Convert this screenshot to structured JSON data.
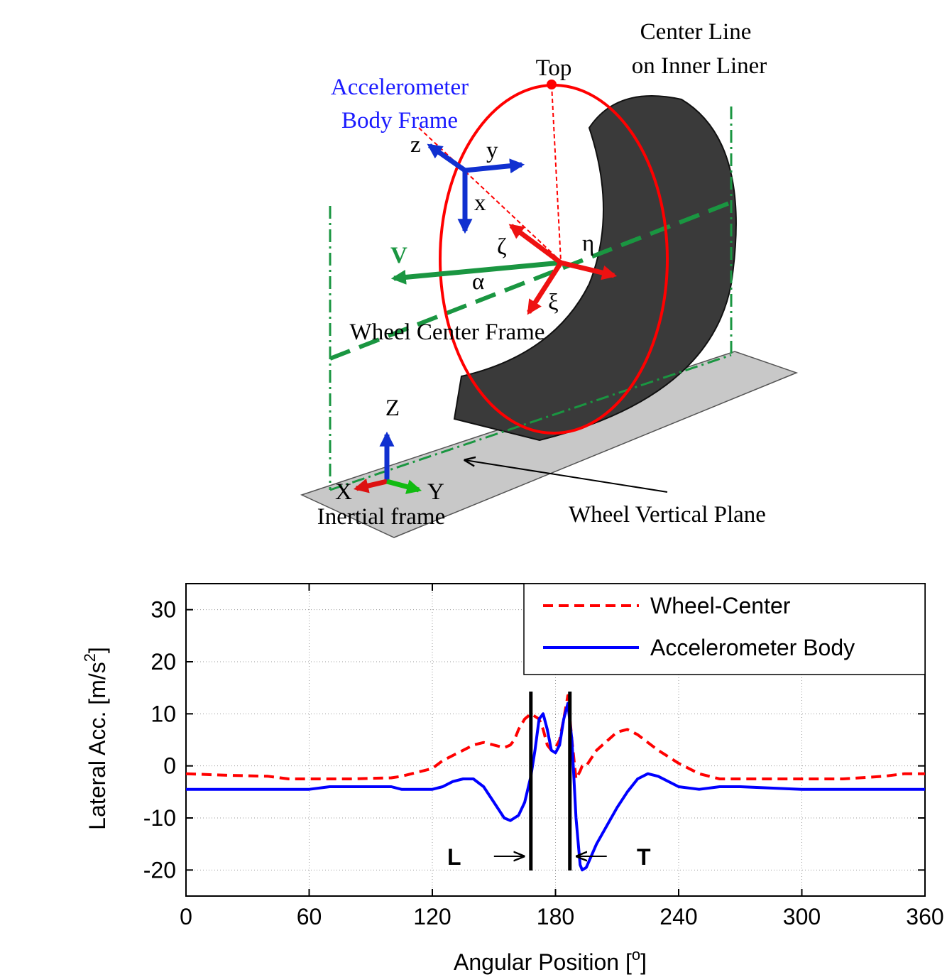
{
  "diagram": {
    "center_line": [
      "Center Line",
      "on Inner Liner"
    ],
    "top": "Top",
    "accelerometer": [
      "Accelerometer",
      "Body Frame"
    ],
    "acc_axes": [
      "z",
      "y",
      "x"
    ],
    "wheel_axes": [
      "ζ",
      "η",
      "ξ"
    ],
    "velocity": "V",
    "slip": "α",
    "wheel_center_frame": "Wheel Center Frame",
    "inertial_axes": [
      "Z",
      "X",
      "Y"
    ],
    "inertial_frame": "Inertial frame",
    "wheel_plane": "Wheel Vertical Plane"
  },
  "chart_data": {
    "type": "line",
    "x_label": {
      "text": "Angular Position [",
      "sup": "o",
      "end": "]"
    },
    "y_label": {
      "text": "Lateral Acc. [m/s",
      "sup": "2",
      "end": "]"
    },
    "x": [
      0,
      20,
      40,
      50,
      60,
      70,
      80,
      100,
      105,
      110,
      120,
      125,
      130,
      135,
      140,
      145,
      150,
      155,
      158,
      160,
      162,
      165,
      168,
      170,
      172,
      174,
      176,
      178,
      180,
      182,
      184,
      186,
      188,
      190,
      192,
      193,
      195,
      200,
      210,
      215,
      220,
      225,
      230,
      240,
      250,
      260,
      270,
      300,
      320,
      340,
      350,
      360
    ],
    "series": [
      {
        "name": "Wheel-Center",
        "color": "#ff0000",
        "dash": true,
        "values": [
          -1.5,
          -1.8,
          -2,
          -2.5,
          -2.5,
          -2.5,
          -2.5,
          -2.3,
          -2,
          -1.5,
          -0.5,
          1,
          2,
          3,
          4,
          4.5,
          4,
          3.5,
          4,
          5,
          7,
          9,
          10,
          9.5,
          9,
          7,
          4,
          3,
          3.5,
          5,
          9,
          13.5,
          5,
          -2.5,
          -1,
          0,
          0,
          3,
          6.5,
          7,
          6,
          4.5,
          3,
          0.5,
          -1.5,
          -2.5,
          -2.5,
          -2.5,
          -2.5,
          -2,
          -1.5,
          -1.5
        ]
      },
      {
        "name": "Accelerometer Body",
        "color": "#0000ff",
        "dash": false,
        "values": [
          -4.5,
          -4.5,
          -4.5,
          -4.5,
          -4.5,
          -4,
          -4,
          -4,
          -4.5,
          -4.5,
          -4.5,
          -4,
          -3,
          -2.5,
          -2.5,
          -4,
          -7,
          -10,
          -10.5,
          -10,
          -9.5,
          -7,
          -2,
          3,
          9,
          10,
          7,
          3,
          2.5,
          4,
          9,
          12,
          5,
          -10,
          -19,
          -20,
          -19.5,
          -15,
          -8,
          -5,
          -2.5,
          -1.5,
          -2,
          -4,
          -4.5,
          -4,
          -4,
          -4.5,
          -4.5,
          -4.5,
          -4.5,
          -4.5
        ]
      }
    ],
    "markers": [
      {
        "label": "L",
        "x": 168
      },
      {
        "label": "T",
        "x": 187
      }
    ],
    "xlim": [
      0,
      360
    ],
    "xticks": [
      0,
      60,
      120,
      180,
      240,
      300,
      360
    ],
    "ylim": [
      -25,
      35
    ],
    "yticks": [
      -20,
      -10,
      0,
      10,
      20,
      30
    ],
    "grid": true,
    "legend": "upper-right"
  }
}
